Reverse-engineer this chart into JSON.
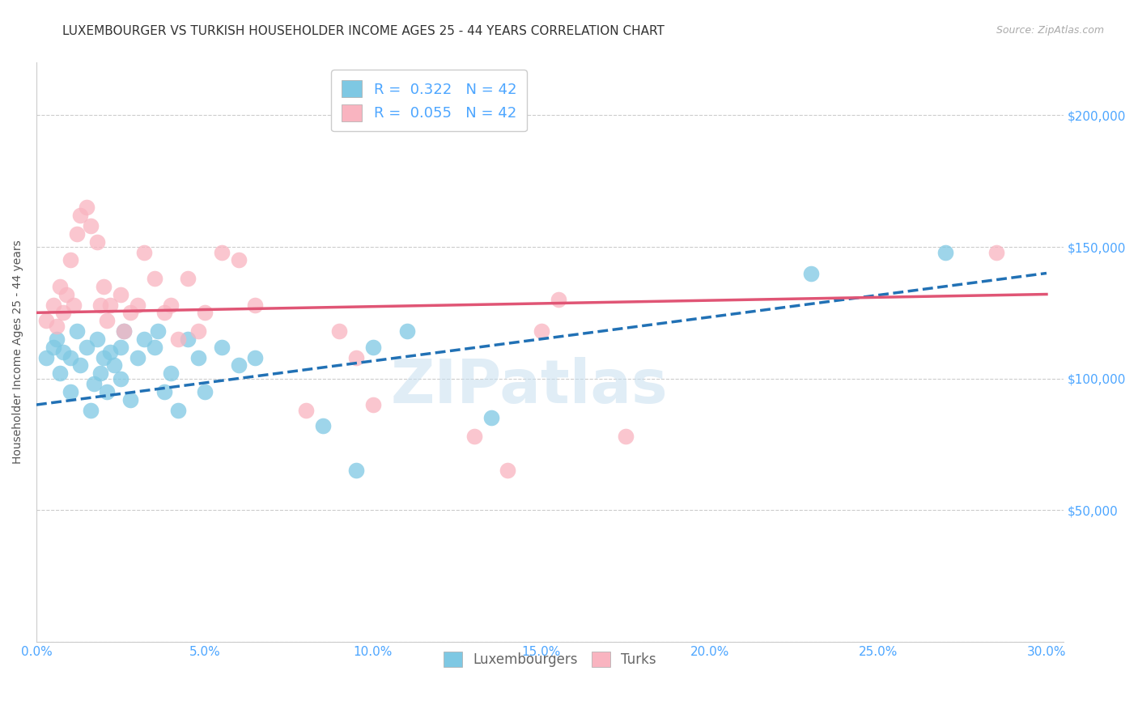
{
  "title": "LUXEMBOURGER VS TURKISH HOUSEHOLDER INCOME AGES 25 - 44 YEARS CORRELATION CHART",
  "source": "Source: ZipAtlas.com",
  "xlabel_ticks": [
    "0.0%",
    "5.0%",
    "10.0%",
    "15.0%",
    "20.0%",
    "25.0%",
    "30.0%"
  ],
  "xlabel_vals": [
    0.0,
    0.05,
    0.1,
    0.15,
    0.2,
    0.25,
    0.3
  ],
  "ylabel": "Householder Income Ages 25 - 44 years",
  "ylabel_ticks": [
    0,
    50000,
    100000,
    150000,
    200000
  ],
  "ylabel_labels": [
    "",
    "$50,000",
    "$100,000",
    "$150,000",
    "$200,000"
  ],
  "ylim": [
    0,
    220000
  ],
  "xlim": [
    0.0,
    0.305
  ],
  "blue_color": "#7ec8e3",
  "pink_color": "#f9b4c0",
  "blue_line_color": "#2171b5",
  "pink_line_color": "#e05575",
  "legend_label_blue": "R =  0.322   N = 42",
  "legend_label_pink": "R =  0.055   N = 42",
  "watermark": "ZIPatlas",
  "blue_regression": [
    90000,
    140000
  ],
  "pink_regression": [
    125000,
    132000
  ],
  "blue_scatter_x": [
    0.003,
    0.005,
    0.006,
    0.007,
    0.008,
    0.01,
    0.01,
    0.012,
    0.013,
    0.015,
    0.016,
    0.017,
    0.018,
    0.019,
    0.02,
    0.021,
    0.022,
    0.023,
    0.025,
    0.025,
    0.026,
    0.028,
    0.03,
    0.032,
    0.035,
    0.036,
    0.038,
    0.04,
    0.042,
    0.045,
    0.048,
    0.05,
    0.055,
    0.06,
    0.065,
    0.085,
    0.095,
    0.1,
    0.11,
    0.135,
    0.23,
    0.27
  ],
  "blue_scatter_y": [
    108000,
    112000,
    115000,
    102000,
    110000,
    108000,
    95000,
    118000,
    105000,
    112000,
    88000,
    98000,
    115000,
    102000,
    108000,
    95000,
    110000,
    105000,
    112000,
    100000,
    118000,
    92000,
    108000,
    115000,
    112000,
    118000,
    95000,
    102000,
    88000,
    115000,
    108000,
    95000,
    112000,
    105000,
    108000,
    82000,
    65000,
    112000,
    118000,
    85000,
    140000,
    148000
  ],
  "pink_scatter_x": [
    0.003,
    0.005,
    0.006,
    0.007,
    0.008,
    0.009,
    0.01,
    0.011,
    0.012,
    0.013,
    0.015,
    0.016,
    0.018,
    0.019,
    0.02,
    0.021,
    0.022,
    0.025,
    0.026,
    0.028,
    0.03,
    0.032,
    0.035,
    0.038,
    0.04,
    0.042,
    0.045,
    0.048,
    0.05,
    0.055,
    0.06,
    0.065,
    0.08,
    0.09,
    0.095,
    0.1,
    0.13,
    0.14,
    0.15,
    0.155,
    0.175,
    0.285
  ],
  "pink_scatter_y": [
    122000,
    128000,
    120000,
    135000,
    125000,
    132000,
    145000,
    128000,
    155000,
    162000,
    165000,
    158000,
    152000,
    128000,
    135000,
    122000,
    128000,
    132000,
    118000,
    125000,
    128000,
    148000,
    138000,
    125000,
    128000,
    115000,
    138000,
    118000,
    125000,
    148000,
    145000,
    128000,
    88000,
    118000,
    108000,
    90000,
    78000,
    65000,
    118000,
    130000,
    78000,
    148000
  ],
  "title_fontsize": 11,
  "source_fontsize": 9,
  "tick_label_color": "#4da6ff",
  "grid_color": "#cccccc",
  "background_color": "#ffffff"
}
